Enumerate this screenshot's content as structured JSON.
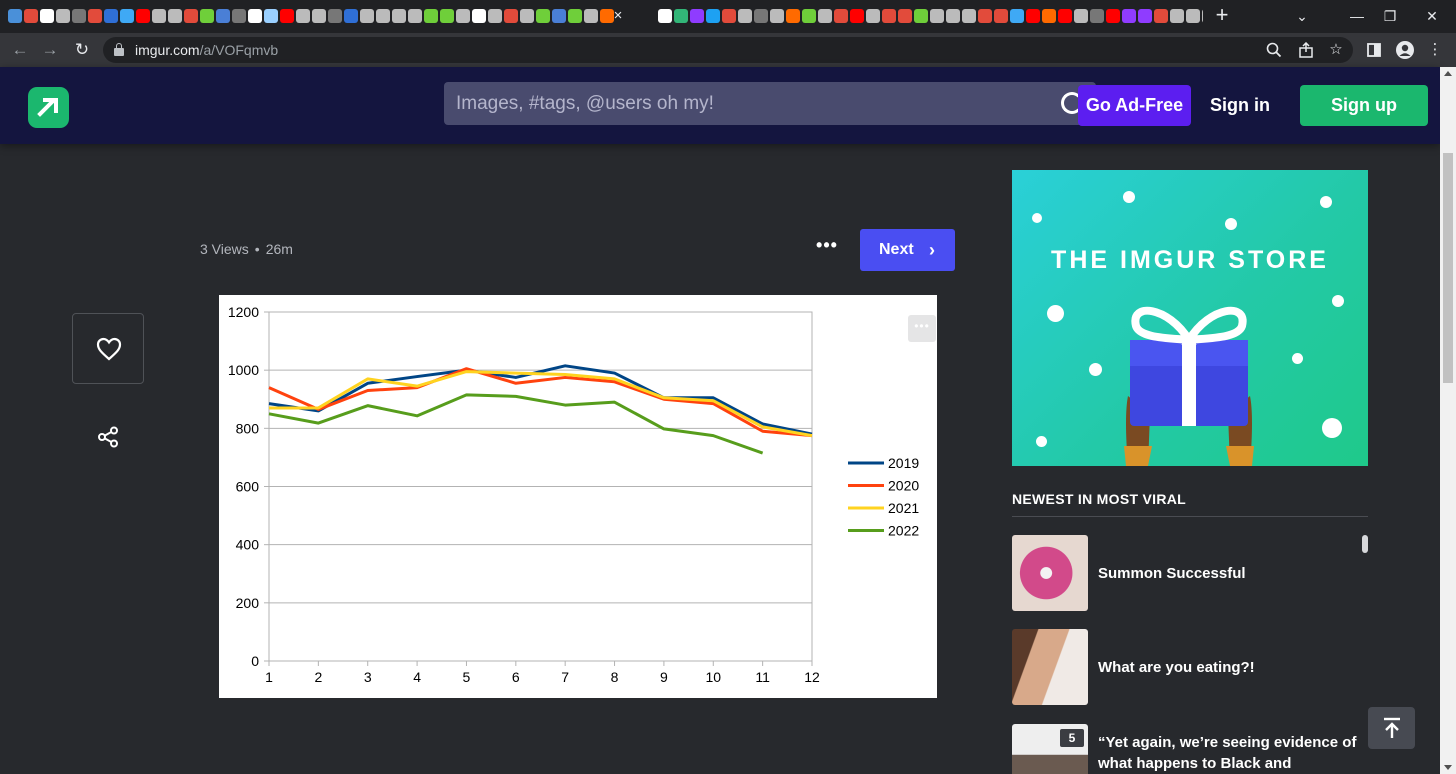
{
  "browser": {
    "url_host": "imgur.com",
    "url_path": "/a/VOFqmvb",
    "tab_favicon_colors": [
      "#4a90d9",
      "#e24b3b",
      "#ffffff",
      "#bbbbbb",
      "#777777",
      "#e24b3b",
      "#2f6fd6",
      "#3fa9f5",
      "#ff0000",
      "#bbbbbb",
      "#bbbbbb",
      "#e24b3b",
      "#6fcf3a",
      "#4a7fd6",
      "#777777",
      "#ffffff",
      "#9ad0ff",
      "#ff0000",
      "#bbbbbb",
      "#bbbbbb",
      "#777777",
      "#2f6fd6",
      "#bbbbbb",
      "#bbbbbb",
      "#bbbbbb",
      "#bbbbbb",
      "#6fcf3a",
      "#6fcf3a",
      "#bbbbbb",
      "#ffffff",
      "#bbbbbb",
      "#e24b3b",
      "#bbbbbb",
      "#6fcf3a",
      "#4a7fd6",
      "#6fcf3a",
      "#bbbbbb",
      "#ff6a00",
      "#ffffff",
      "#32b678",
      "#8f3cff",
      "#1da1f2",
      "#e24b3b",
      "#bbbbbb",
      "#777777",
      "#bbbbbb",
      "#ff6a00",
      "#6fcf3a",
      "#bbbbbb",
      "#e24b3b",
      "#ff0000",
      "#bbbbbb",
      "#e24b3b",
      "#e24b3b",
      "#6fcf3a",
      "#bbbbbb",
      "#bbbbbb",
      "#bbbbbb",
      "#e24b3b",
      "#e24b3b",
      "#3fa9f5",
      "#ff0000",
      "#ff6a00",
      "#ff0000",
      "#bbbbbb",
      "#777777",
      "#ff0000",
      "#8f3cff",
      "#8f3cff",
      "#e24b3b",
      "#bbbbbb",
      "#bbbbbb",
      "#bbbbbb"
    ],
    "active_close": "×",
    "new_tab": "+",
    "window_minimize": "⌄",
    "window_min": "—",
    "window_restore": "❐",
    "window_close": "✕"
  },
  "header": {
    "search_placeholder": "Images, #tags, @users oh my!",
    "ad_free_label": "Go Ad-Free",
    "sign_in_label": "Sign in",
    "sign_up_label": "Sign up"
  },
  "post": {
    "views": "3 Views",
    "separator": "•",
    "age": "26m",
    "more_label": "•••",
    "next_label": "Next",
    "next_chevron": "›",
    "image_more_label": "•••"
  },
  "sidebar": {
    "ad_title": "THE IMGUR STORE",
    "heading": "NEWEST IN MOST VIRAL",
    "items": [
      {
        "title": "Summon Successful",
        "badge": ""
      },
      {
        "title": "What are you eating?!",
        "badge": ""
      },
      {
        "title": "“Yet again, we’re seeing evidence of what happens to Black and",
        "badge": "5"
      }
    ]
  },
  "chart_data": {
    "type": "line",
    "categories": [
      1,
      2,
      3,
      4,
      5,
      6,
      7,
      8,
      9,
      10,
      11,
      12
    ],
    "ylim": [
      0,
      1200
    ],
    "yticks": [
      0,
      200,
      400,
      600,
      800,
      1000,
      1200
    ],
    "grid": true,
    "legend_position": "right",
    "series": [
      {
        "name": "2019",
        "color": "#004586",
        "values": [
          885,
          860,
          955,
          978,
          1000,
          975,
          1015,
          990,
          905,
          905,
          815,
          780
        ]
      },
      {
        "name": "2020",
        "color": "#ff420e",
        "values": [
          940,
          865,
          930,
          940,
          1005,
          955,
          975,
          960,
          900,
          885,
          790,
          775
        ]
      },
      {
        "name": "2021",
        "color": "#ffd320",
        "values": [
          870,
          870,
          970,
          945,
          995,
          990,
          985,
          970,
          905,
          895,
          805,
          775
        ]
      },
      {
        "name": "2022",
        "color": "#579d1c",
        "values": [
          850,
          818,
          878,
          843,
          915,
          910,
          880,
          890,
          798,
          775,
          715,
          null
        ]
      }
    ]
  }
}
